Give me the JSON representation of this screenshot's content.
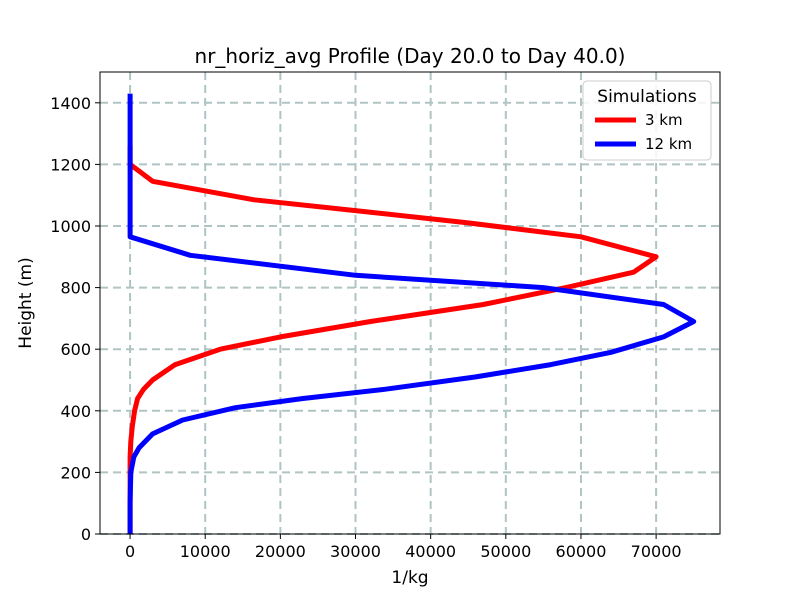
{
  "chart_data": {
    "type": "line",
    "title": "nr_horiz_avg Profile (Day 20.0 to Day 40.0)",
    "xlabel": "1/kg",
    "ylabel": "Height (m)",
    "xlim": [
      -4000,
      78500
    ],
    "ylim": [
      0,
      1500
    ],
    "xticks": [
      0,
      10000,
      20000,
      30000,
      40000,
      50000,
      60000,
      70000
    ],
    "xtick_labels": [
      "0",
      "10000",
      "20000",
      "30000",
      "40000",
      "50000",
      "60000",
      "70000"
    ],
    "yticks": [
      0,
      200,
      400,
      600,
      800,
      1000,
      1200,
      1400
    ],
    "ytick_labels": [
      "0",
      "200",
      "400",
      "600",
      "800",
      "1000",
      "1200",
      "1400"
    ],
    "grid": true,
    "legend": {
      "title": "Simulations",
      "placement": "top-right"
    },
    "series": [
      {
        "name": "3 km",
        "color": "#ff0000",
        "x": [
          0,
          0,
          0,
          0,
          100,
          300,
          600,
          1000,
          1800,
          3000,
          6000,
          12000,
          20000,
          32000,
          47000,
          58000,
          67000,
          70000,
          60000,
          45000,
          30000,
          16500,
          3000,
          0,
          0,
          0
        ],
        "y": [
          0,
          100,
          200,
          250,
          300,
          350,
          400,
          440,
          470,
          500,
          550,
          600,
          640,
          690,
          745,
          800,
          850,
          900,
          965,
          1010,
          1050,
          1085,
          1145,
          1200,
          1250,
          1260
        ]
      },
      {
        "name": "12 km",
        "color": "#0000ff",
        "x": [
          0,
          0,
          100,
          500,
          1200,
          3000,
          7000,
          14000,
          23000,
          34000,
          46000,
          56000,
          64000,
          71000,
          75000,
          71000,
          55000,
          30000,
          8000,
          0,
          0,
          0
        ],
        "y": [
          0,
          100,
          200,
          250,
          280,
          325,
          370,
          410,
          440,
          470,
          510,
          550,
          590,
          640,
          690,
          745,
          800,
          840,
          905,
          965,
          1200,
          1430
        ]
      }
    ]
  }
}
